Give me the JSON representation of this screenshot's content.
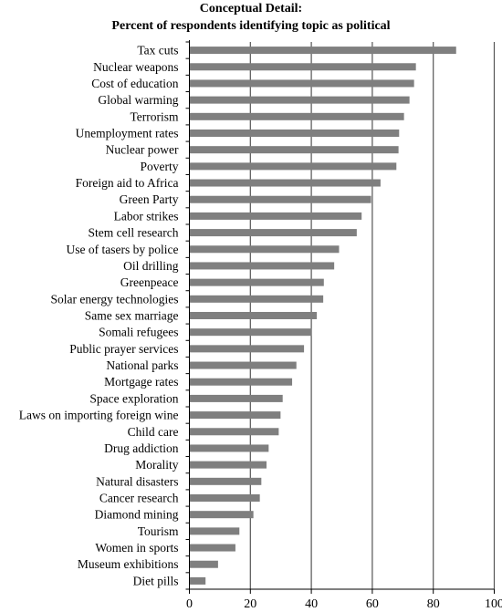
{
  "chart_data": {
    "type": "bar",
    "orientation": "horizontal",
    "title": "Conceptual Detail:",
    "subtitle": "Percent of respondents identifying topic as political",
    "xlabel": "",
    "ylabel": "",
    "xlim": [
      0,
      100
    ],
    "x_ticks": [
      0,
      20,
      40,
      60,
      80,
      100
    ],
    "grid": "vertical",
    "legend": "none",
    "bar_color": "#7f7f7f",
    "grid_color": "#555555",
    "categories": [
      "Tax cuts",
      "Nuclear weapons",
      "Cost of education",
      "Global warming",
      "Terrorism",
      "Unemployment rates",
      "Nuclear power",
      "Poverty",
      "Foreign aid to Africa",
      "Green Party",
      "Labor strikes",
      "Stem cell research",
      "Use of tasers by police",
      "Oil drilling",
      "Greenpeace",
      "Solar energy technologies",
      "Same sex marriage",
      "Somali refugees",
      "Public prayer services",
      "National parks",
      "Mortgage rates",
      "Space exploration",
      "Laws on importing foreign wine",
      "Child care",
      "Drug addiction",
      "Morality",
      "Natural disasters",
      "Cancer research",
      "Diamond mining",
      "Tourism",
      "Women in sports",
      "Museum exhibitions",
      "Diet pills"
    ],
    "values": [
      87.5,
      74.3,
      73.7,
      72.2,
      70.4,
      68.8,
      68.6,
      67.9,
      62.7,
      59.6,
      56.5,
      54.9,
      49.1,
      47.5,
      44.1,
      43.9,
      41.8,
      40.1,
      37.6,
      35.1,
      33.7,
      30.6,
      29.9,
      29.3,
      26.0,
      25.3,
      23.6,
      23.1,
      21.0,
      16.4,
      15.1,
      9.4,
      5.3
    ]
  }
}
